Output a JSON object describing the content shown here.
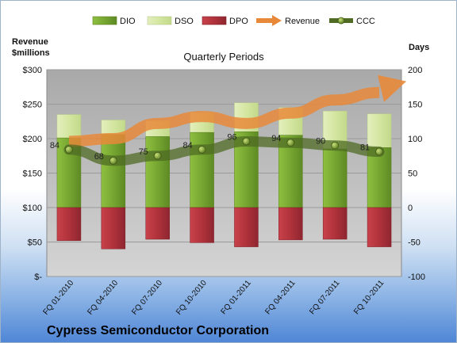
{
  "chart_data": {
    "type": "bar",
    "title": "Quarterly Periods",
    "company": "Cypress Semiconductor Corporation",
    "categories": [
      "FQ 01-2010",
      "FQ 04-2010",
      "FQ 07-2010",
      "FQ 10-2010",
      "FQ 01-2011",
      "FQ 04-2011",
      "FQ 07-2011",
      "FQ 10-2011"
    ],
    "y_left": {
      "label_line1": "Revenue",
      "label_line2": "$millions",
      "ticks": [
        "$-",
        "$50",
        "$100",
        "$150",
        "$200",
        "$250",
        "$300"
      ],
      "ylim": [
        0,
        300
      ]
    },
    "y_right": {
      "label": "Days",
      "ticks": [
        "-100",
        "-50",
        "0",
        "50",
        "100",
        "150",
        "200"
      ],
      "ylim": [
        -100,
        200
      ]
    },
    "series": [
      {
        "name": "DIO",
        "axis": "right",
        "color": "#7aa832",
        "values": [
          0,
          0,
          0,
          0,
          0,
          0,
          0,
          0
        ]
      },
      {
        "name": "DSO",
        "axis": "right",
        "color": "#d7e8a8",
        "values": [
          0,
          0,
          0,
          0,
          0,
          0,
          0,
          0
        ]
      },
      {
        "name": "DPO",
        "axis": "right",
        "color": "#b0303a",
        "values": [
          -48,
          -60,
          -46,
          -51,
          -57,
          -47,
          -46,
          -57
        ]
      },
      {
        "name": "Revenue",
        "axis": "left",
        "color": "#e8893a",
        "values": [
          196,
          200,
          222,
          232,
          222,
          237,
          256,
          267
        ]
      },
      {
        "name": "CCC",
        "axis": "right",
        "color": "#5a7a2a",
        "values": [
          84,
          68,
          75,
          84,
          96,
          94,
          90,
          81
        ],
        "labels": [
          "84",
          "68",
          "75",
          "84",
          "96",
          "94",
          "90",
          "81"
        ]
      }
    ],
    "dio_values": [
      101,
      106,
      103,
      109,
      110,
      105,
      85,
      87
    ],
    "dso_totals": [
      135,
      127,
      126,
      138,
      152,
      145,
      140,
      136
    ],
    "legend": {
      "position": "top"
    },
    "grid": true
  }
}
